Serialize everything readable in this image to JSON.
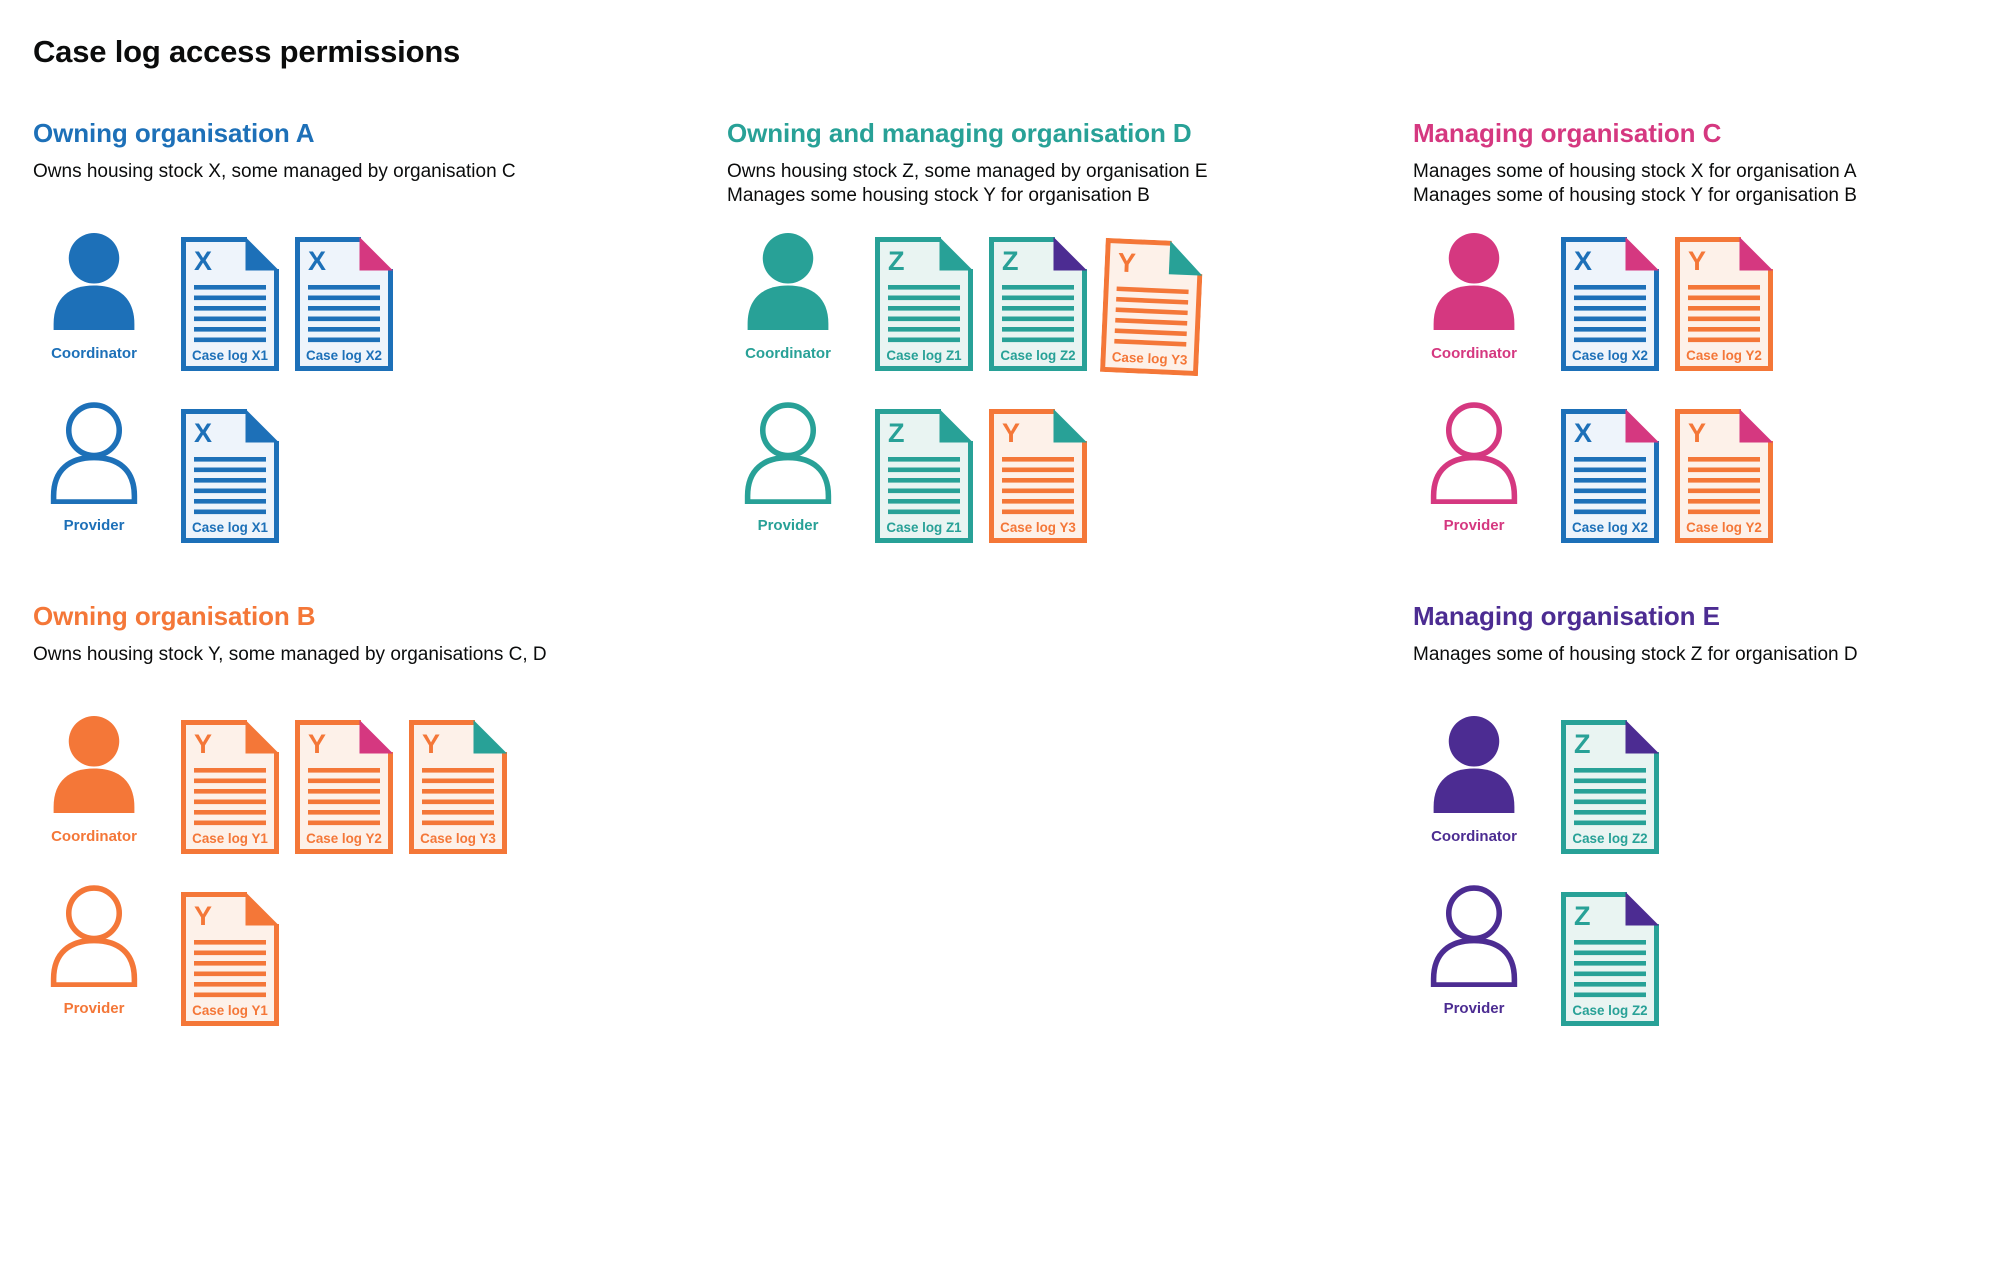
{
  "page_title": "Case log access permissions",
  "colors": {
    "blue": "#1d70b8",
    "teal": "#28a197",
    "pink": "#d53880",
    "orange": "#f47738",
    "purple": "#4c2c92",
    "text": "#0b0c0c",
    "blue_tint": "#eef4fb",
    "teal_tint": "#e9f4f2",
    "orange_tint": "#fdf1e9"
  },
  "roles": {
    "coordinator": "Coordinator",
    "provider": "Provider"
  },
  "icons": {
    "coordinator": "person-filled-icon",
    "provider": "person-outline-icon",
    "document": "case-log-document-icon"
  },
  "organisations": [
    {
      "id": "org-a",
      "heading": "Owning organisation A",
      "color": "blue",
      "description": [
        "Owns housing stock X, some managed by organisation C"
      ],
      "grid": {
        "row": 1,
        "col": 1
      },
      "coordinator_docs": [
        {
          "letter": "X",
          "caption": "Case log X1",
          "doc_color": "blue",
          "fold_color": "blue"
        },
        {
          "letter": "X",
          "caption": "Case log X2",
          "doc_color": "blue",
          "fold_color": "pink"
        }
      ],
      "provider_docs": [
        {
          "letter": "X",
          "caption": "Case log X1",
          "doc_color": "blue",
          "fold_color": "blue"
        }
      ]
    },
    {
      "id": "org-d",
      "heading": "Owning and managing organisation D",
      "color": "teal",
      "description": [
        "Owns housing stock Z, some managed by organisation E",
        "Manages some housing stock Y for organisation B"
      ],
      "grid": {
        "row": 1,
        "col": 2
      },
      "coordinator_docs": [
        {
          "letter": "Z",
          "caption": "Case log Z1",
          "doc_color": "teal",
          "fold_color": "teal"
        },
        {
          "letter": "Z",
          "caption": "Case log Z2",
          "doc_color": "teal",
          "fold_color": "purple"
        },
        {
          "letter": "Y",
          "caption": "Case log Y3",
          "doc_color": "orange",
          "fold_color": "teal",
          "tilt": 2.5
        }
      ],
      "provider_docs": [
        {
          "letter": "Z",
          "caption": "Case log Z1",
          "doc_color": "teal",
          "fold_color": "teal"
        },
        {
          "letter": "Y",
          "caption": "Case log Y3",
          "doc_color": "orange",
          "fold_color": "teal"
        }
      ]
    },
    {
      "id": "org-c",
      "heading": "Managing organisation C",
      "color": "pink",
      "description": [
        "Manages some of housing stock X for organisation A",
        "Manages some of housing stock Y for organisation B"
      ],
      "grid": {
        "row": 1,
        "col": 3
      },
      "coordinator_docs": [
        {
          "letter": "X",
          "caption": "Case log X2",
          "doc_color": "blue",
          "fold_color": "pink"
        },
        {
          "letter": "Y",
          "caption": "Case log Y2",
          "doc_color": "orange",
          "fold_color": "pink"
        }
      ],
      "provider_docs": [
        {
          "letter": "X",
          "caption": "Case log X2",
          "doc_color": "blue",
          "fold_color": "pink"
        },
        {
          "letter": "Y",
          "caption": "Case log Y2",
          "doc_color": "orange",
          "fold_color": "pink"
        }
      ]
    },
    {
      "id": "org-b",
      "heading": "Owning organisation B",
      "color": "orange",
      "description": [
        "Owns housing stock Y, some managed by organisations C, D"
      ],
      "grid": {
        "row": 2,
        "col": 1
      },
      "coordinator_docs": [
        {
          "letter": "Y",
          "caption": "Case log Y1",
          "doc_color": "orange",
          "fold_color": "orange"
        },
        {
          "letter": "Y",
          "caption": "Case log Y2",
          "doc_color": "orange",
          "fold_color": "pink"
        },
        {
          "letter": "Y",
          "caption": "Case log Y3",
          "doc_color": "orange",
          "fold_color": "teal"
        }
      ],
      "provider_docs": [
        {
          "letter": "Y",
          "caption": "Case log Y1",
          "doc_color": "orange",
          "fold_color": "orange"
        }
      ]
    },
    {
      "id": "org-e",
      "heading": "Managing organisation E",
      "color": "purple",
      "description": [
        "Manages some of housing stock Z for organisation D"
      ],
      "grid": {
        "row": 2,
        "col": 3
      },
      "coordinator_docs": [
        {
          "letter": "Z",
          "caption": "Case log Z2",
          "doc_color": "teal",
          "fold_color": "purple"
        }
      ],
      "provider_docs": [
        {
          "letter": "Z",
          "caption": "Case log Z2",
          "doc_color": "teal",
          "fold_color": "purple"
        }
      ]
    }
  ]
}
